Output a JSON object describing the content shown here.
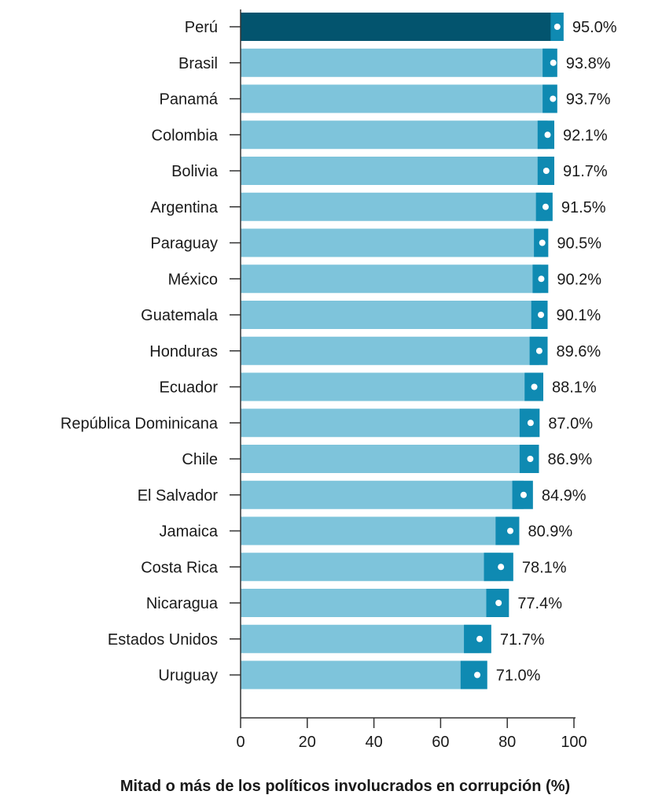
{
  "chart_data": {
    "type": "bar",
    "orientation": "horizontal",
    "categories": [
      "Perú",
      "Brasil",
      "Panamá",
      "Colombia",
      "Bolivia",
      "Argentina",
      "Paraguay",
      "México",
      "Guatemala",
      "Honduras",
      "Ecuador",
      "República Dominicana",
      "Chile",
      "El Salvador",
      "Jamaica",
      "Costa Rica",
      "Nicaragua",
      "Estados Unidos",
      "Uruguay"
    ],
    "values": [
      95.0,
      93.8,
      93.7,
      92.1,
      91.7,
      91.5,
      90.5,
      90.2,
      90.1,
      89.6,
      88.1,
      87.0,
      86.9,
      84.9,
      80.9,
      78.1,
      77.4,
      71.7,
      71.0
    ],
    "value_labels": [
      "95.0%",
      "93.8%",
      "93.7%",
      "92.1%",
      "91.7%",
      "91.5%",
      "90.5%",
      "90.2%",
      "90.1%",
      "89.6%",
      "88.1%",
      "87.0%",
      "86.9%",
      "84.9%",
      "80.9%",
      "78.1%",
      "77.4%",
      "71.7%",
      "71.0%"
    ],
    "ci_lower": [
      93.0,
      90.6,
      90.6,
      89.1,
      89.1,
      88.6,
      88.0,
      87.6,
      87.2,
      86.7,
      85.2,
      83.7,
      83.7,
      81.5,
      76.5,
      73.0,
      73.7,
      67.0,
      66.0
    ],
    "ci_upper": [
      96.9,
      95.0,
      95.0,
      94.1,
      94.1,
      93.6,
      92.3,
      92.3,
      92.1,
      92.1,
      90.8,
      89.7,
      89.5,
      87.7,
      83.6,
      81.8,
      80.5,
      75.2,
      74.0
    ],
    "highlight_index": 0,
    "xlabel": "Mitad o más de los políticos involucrados en corrupción (%)",
    "xlim": [
      0,
      100
    ],
    "xticks": [
      0,
      20,
      40,
      60,
      80,
      100
    ],
    "grid": false,
    "colors": {
      "bar": "#7ec4db",
      "bar_highlight": "#03546e",
      "ci_box": "#0f8ab2",
      "ci_dot": "#ffffff",
      "axis": "#333333",
      "text": "#1a1a1a"
    }
  }
}
